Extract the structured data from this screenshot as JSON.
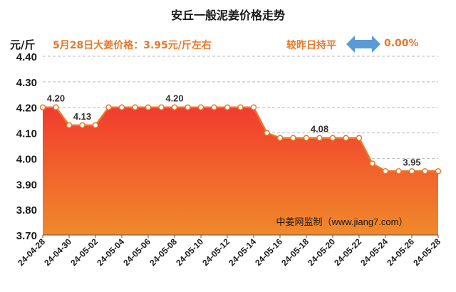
{
  "header": {
    "title": "安丘一般泥姜价格走势",
    "unit": "元/斤",
    "price_note": "5月28日大姜价格：3.95元/斤左右",
    "compare_label": "较昨日持平",
    "change_pct": "0.00%"
  },
  "colors": {
    "line": "#e8782a",
    "area_top": "#f23b2e",
    "area_bottom": "#f08a2a",
    "arrow": "#5b9bd5",
    "grid": "#bbbbbb"
  },
  "chart_data": {
    "type": "area",
    "title": "安丘一般泥姜价格走势",
    "ylabel": "元/斤",
    "ylim": [
      3.7,
      4.4
    ],
    "yticks": [
      "4.40",
      "4.30",
      "4.20",
      "4.10",
      "4.00",
      "3.90",
      "3.80",
      "3.70"
    ],
    "grid": true,
    "x": [
      "24-04-28",
      "24-04-29",
      "24-04-30",
      "24-05-01",
      "24-05-02",
      "24-05-03",
      "24-05-04",
      "24-05-05",
      "24-05-06",
      "24-05-07",
      "24-05-08",
      "24-05-09",
      "24-05-10",
      "24-05-11",
      "24-05-12",
      "24-05-13",
      "24-05-14",
      "24-05-15",
      "24-05-16",
      "24-05-17",
      "24-05-18",
      "24-05-19",
      "24-05-20",
      "24-05-21",
      "24-05-22",
      "24-05-23",
      "24-05-24",
      "24-05-25",
      "24-05-26",
      "24-05-27",
      "24-05-28"
    ],
    "xtick_labels": [
      "24-04-28",
      "24-04-30",
      "24-05-02",
      "24-05-04",
      "24-05-06",
      "24-05-08",
      "24-05-10",
      "24-05-12",
      "24-05-14",
      "24-05-16",
      "24-05-18",
      "24-05-20",
      "24-05-22",
      "24-05-24",
      "24-05-26",
      "24-05-28"
    ],
    "values": [
      4.2,
      4.2,
      4.13,
      4.13,
      4.13,
      4.2,
      4.2,
      4.2,
      4.2,
      4.2,
      4.2,
      4.2,
      4.2,
      4.2,
      4.2,
      4.2,
      4.2,
      4.1,
      4.08,
      4.08,
      4.08,
      4.08,
      4.08,
      4.08,
      4.08,
      3.98,
      3.95,
      3.95,
      3.95,
      3.95,
      3.95
    ],
    "data_labels": [
      {
        "index": 1,
        "text": "4.20"
      },
      {
        "index": 3,
        "text": "4.13"
      },
      {
        "index": 10,
        "text": "4.20"
      },
      {
        "index": 21,
        "text": "4.08"
      },
      {
        "index": 28,
        "text": "3.95"
      }
    ],
    "watermark": "中姜网监制（www.jiang7.com）"
  }
}
